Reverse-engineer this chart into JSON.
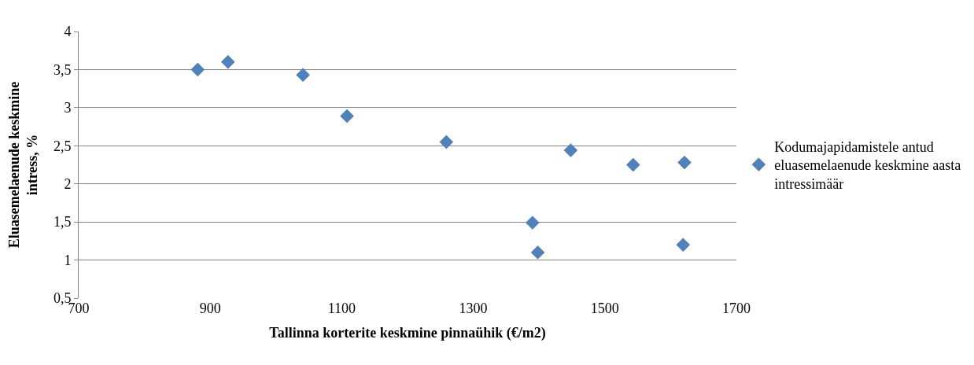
{
  "chart_data": {
    "type": "scatter",
    "xlabel": "Tallinna korterite keskmine pinnaühik (€/m2)",
    "ylabel": "Eluasemelaenude keskmine intress, %",
    "x": [
      881,
      927,
      1041,
      1108,
      1259,
      1390,
      1398,
      1448,
      1543,
      1619,
      1621
    ],
    "series": [
      {
        "name": "Kodumajapidamistele antud eluasemelaenude keskmine aasta intressimäär",
        "color": "#4f81bd",
        "values": [
          3.5,
          3.6,
          3.43,
          2.89,
          2.55,
          1.49,
          1.1,
          2.44,
          2.25,
          1.2,
          2.28
        ]
      }
    ],
    "xlim": [
      700,
      1700
    ],
    "xticks": [
      700,
      900,
      1100,
      1300,
      1500,
      1700
    ],
    "ylim": [
      0.5,
      4
    ],
    "yticks": [
      {
        "value": 0.5,
        "label": "0,5"
      },
      1,
      {
        "value": 1.5,
        "label": "1,5"
      },
      2,
      {
        "value": 2.5,
        "label": "2,5"
      },
      3,
      {
        "value": 3.5,
        "label": "3,5"
      },
      4
    ],
    "grid": "y",
    "legend": "right",
    "marker": "diamond"
  }
}
